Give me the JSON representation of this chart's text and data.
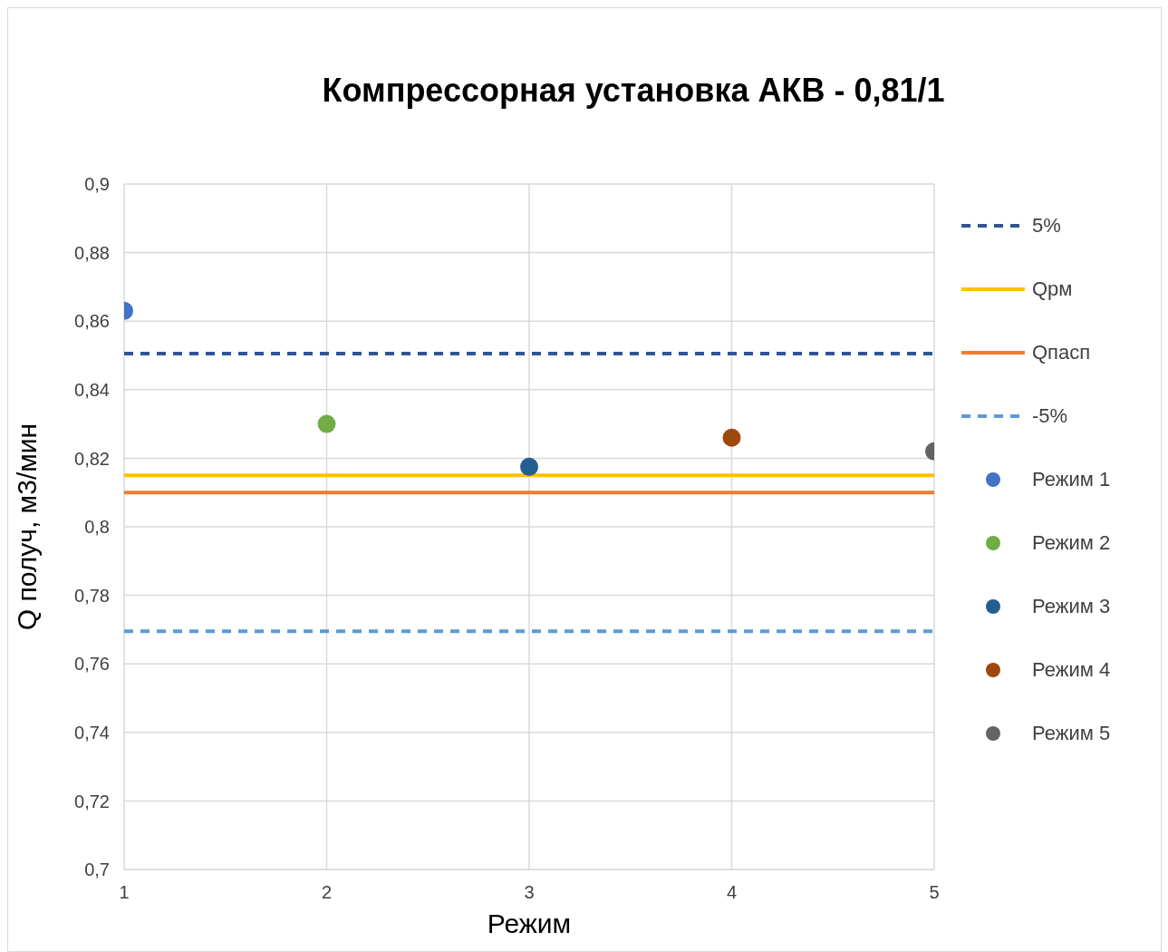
{
  "chart_data": {
    "type": "scatter",
    "title": "Компрессорная установка АКВ - 0,81/1",
    "xlabel": "Режим",
    "ylabel": "Q получ, м3/мин",
    "xlim": [
      1,
      5
    ],
    "xticks": [
      1,
      2,
      3,
      4,
      5
    ],
    "ylim": [
      0.7,
      0.9
    ],
    "yticks": [
      {
        "value": 0.7,
        "label": "0,7"
      },
      {
        "value": 0.72,
        "label": "0,72"
      },
      {
        "value": 0.74,
        "label": "0,74"
      },
      {
        "value": 0.76,
        "label": "0,76"
      },
      {
        "value": 0.78,
        "label": "0,78"
      },
      {
        "value": 0.8,
        "label": "0,8"
      },
      {
        "value": 0.82,
        "label": "0,82"
      },
      {
        "value": 0.84,
        "label": "0,84"
      },
      {
        "value": 0.86,
        "label": "0,86"
      },
      {
        "value": 0.88,
        "label": "0,88"
      },
      {
        "value": 0.9,
        "label": "0,9"
      }
    ],
    "grid": true,
    "legend": "right",
    "series": [
      {
        "name": "5%",
        "type": "line",
        "line_style": "dashed",
        "marker": "none",
        "color": "#2f5597",
        "x": [
          1,
          5
        ],
        "values": [
          0.8505,
          0.8505
        ]
      },
      {
        "name": "Qрм",
        "type": "line",
        "line_style": "solid",
        "marker": "none",
        "color": "#ffc000",
        "x": [
          1,
          5
        ],
        "values": [
          0.815,
          0.815
        ]
      },
      {
        "name": "Qпасп",
        "type": "line",
        "line_style": "solid",
        "marker": "none",
        "color": "#ed7d31",
        "x": [
          1,
          5
        ],
        "values": [
          0.81,
          0.81
        ]
      },
      {
        "name": "-5%",
        "type": "line",
        "line_style": "dashed",
        "marker": "none",
        "color": "#5b9bd5",
        "x": [
          1,
          5
        ],
        "values": [
          0.7695,
          0.7695
        ]
      },
      {
        "name": "Режим 1",
        "marker": "circle",
        "color": "#4472c4",
        "x": [
          1
        ],
        "values": [
          0.863
        ]
      },
      {
        "name": "Режим 2",
        "marker": "circle",
        "color": "#70ad47",
        "x": [
          2
        ],
        "values": [
          0.83
        ]
      },
      {
        "name": "Режим 3",
        "marker": "circle",
        "color": "#255e91",
        "x": [
          3
        ],
        "values": [
          0.8175
        ]
      },
      {
        "name": "Режим 4",
        "marker": "circle",
        "color": "#9e480e",
        "x": [
          4
        ],
        "values": [
          0.826
        ]
      },
      {
        "name": "Режим 5",
        "marker": "circle",
        "color": "#636363",
        "x": [
          5
        ],
        "values": [
          0.822
        ]
      }
    ]
  }
}
